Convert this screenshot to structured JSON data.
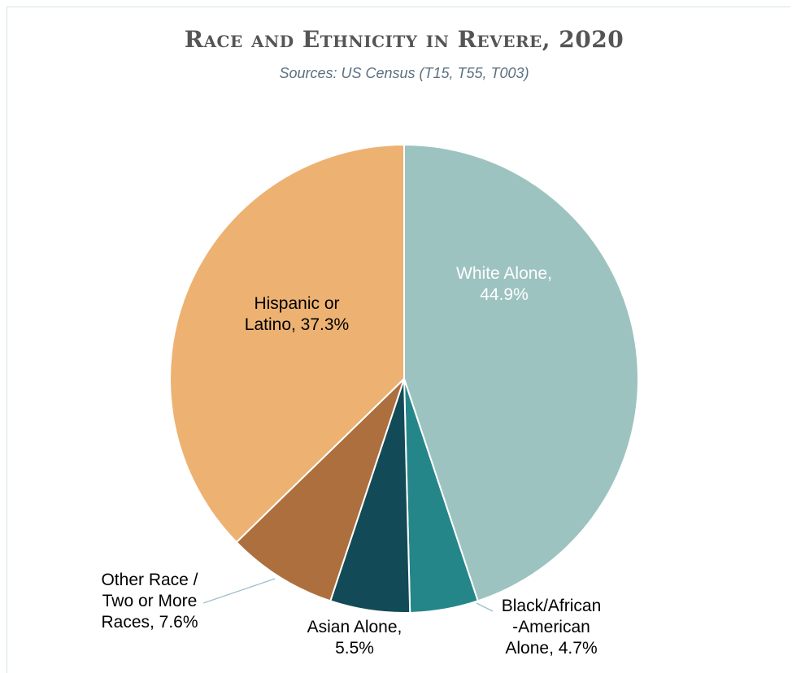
{
  "chart_data": {
    "type": "pie",
    "title": "Race and Ethnicity in Revere, 2020",
    "subtitle": "Sources: US Census (T15, T55, T003)",
    "slices": [
      {
        "label": "White Alone, 44.9%",
        "lines": [
          "White Alone,",
          "44.9%"
        ],
        "value": 44.9,
        "color": "#9dc3c1"
      },
      {
        "label": "Black/African -American Alone, 4.7%",
        "lines": [
          "Black/African",
          "-American",
          "Alone, 4.7%"
        ],
        "value": 4.7,
        "color": "#25868a"
      },
      {
        "label": "Asian Alone, 5.5%",
        "lines": [
          "Asian Alone,",
          "5.5%"
        ],
        "value": 5.5,
        "color": "#134a57"
      },
      {
        "label": "Other Race / Two or More Races, 7.6%",
        "lines": [
          "Other Race /",
          "Two or More",
          "Races, 7.6%"
        ],
        "value": 7.6,
        "color": "#ad6f3d"
      },
      {
        "label": "Hispanic or Latino, 37.3%",
        "lines": [
          "Hispanic or",
          "Latino, 37.3%"
        ],
        "value": 37.3,
        "color": "#edb272"
      }
    ]
  }
}
